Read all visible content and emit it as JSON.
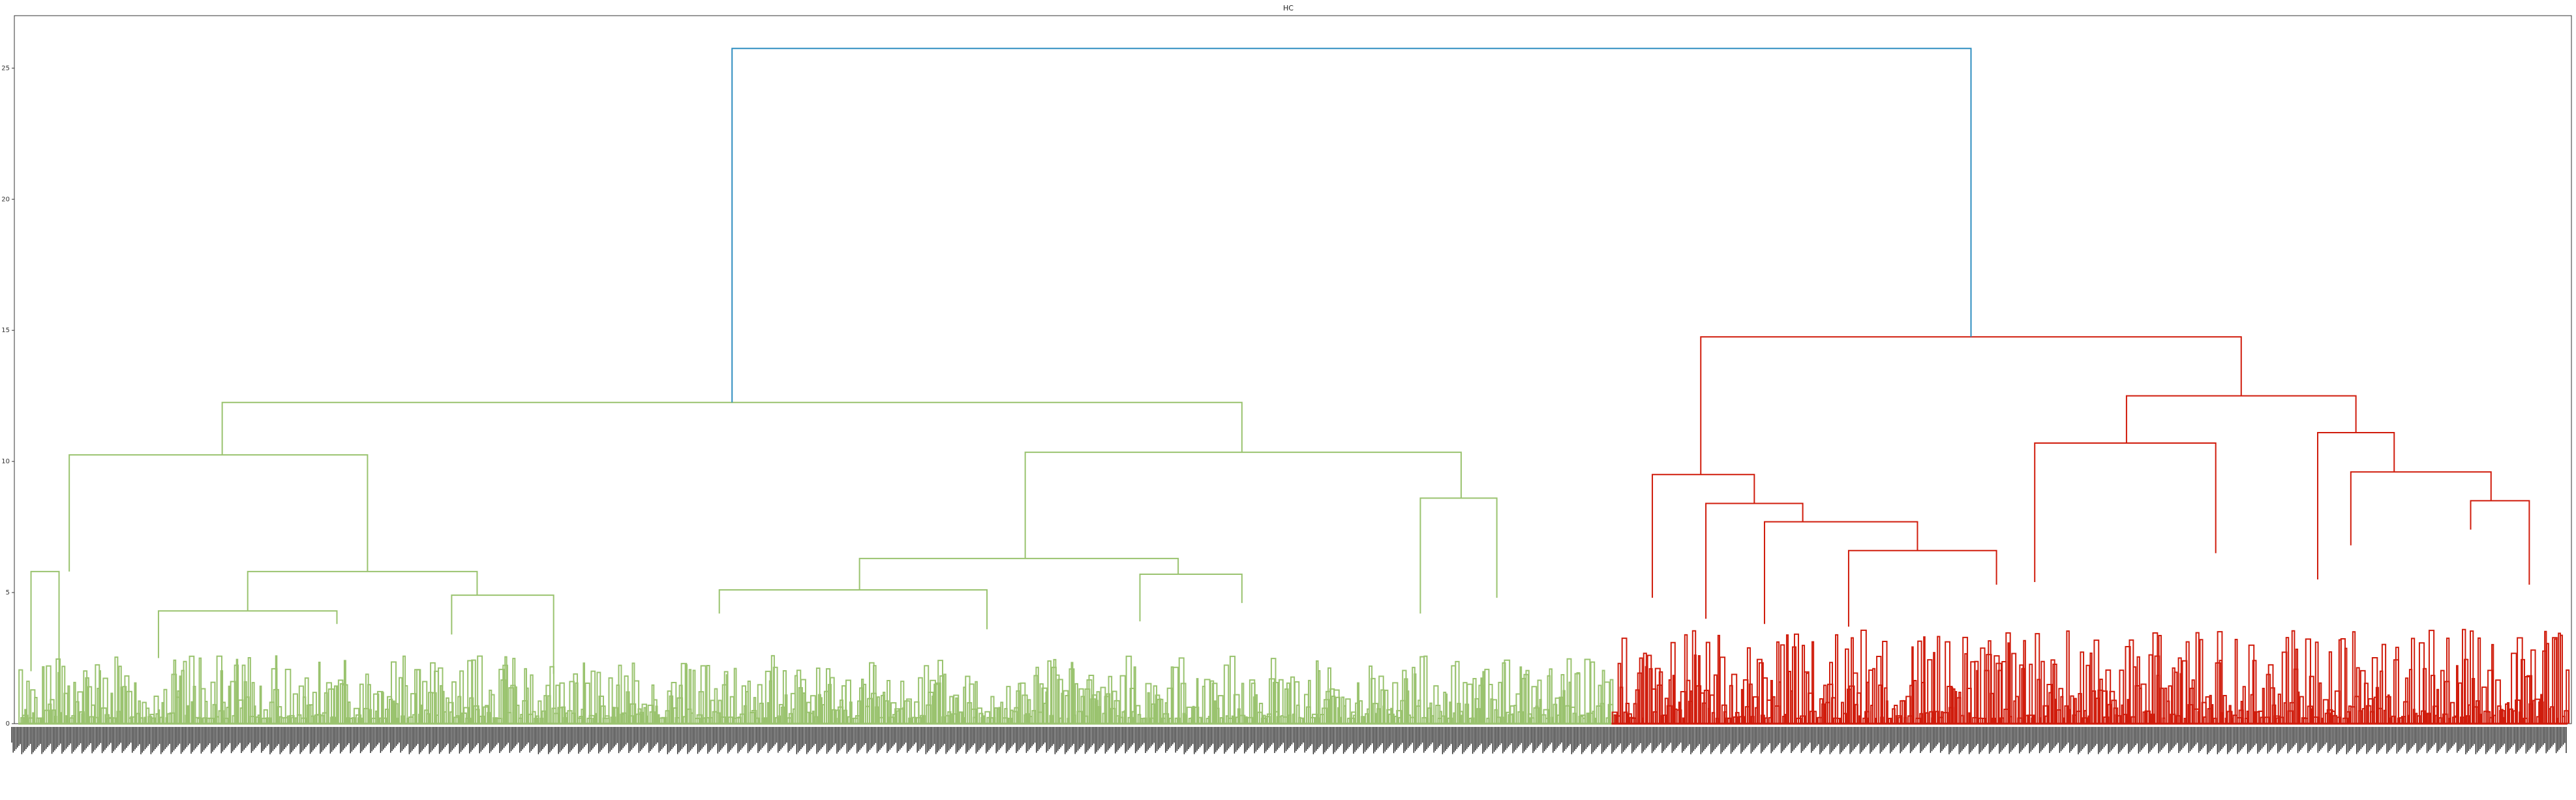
{
  "chart_data": {
    "type": "dendrogram",
    "title": "HC",
    "xlabel": "",
    "ylabel": "",
    "ylim": [
      0,
      27
    ],
    "yticks": [
      0,
      5,
      10,
      15,
      20,
      25
    ],
    "grid": false,
    "legend": "none",
    "colors": {
      "cluster_green": "#9ac36f",
      "cluster_red": "#d01c0c",
      "link_above_threshold": "#2f8ec0",
      "axis": "#333333",
      "leaf_labels": "#222222"
    },
    "top_merge": {
      "height": 25.75,
      "color": "link_above_threshold",
      "children": [
        "green_cluster",
        "red_cluster"
      ]
    },
    "clusters": [
      {
        "name": "green_cluster",
        "color": "cluster_green",
        "leaf_range": [
          0,
          0.625
        ],
        "merges": [
          {
            "height": 12.25,
            "children_at": [
              0.08,
              0.48
            ],
            "child_heights": [
              10.25,
              10.35
            ]
          },
          {
            "height": 10.25,
            "children_at": [
              0.02,
              0.137
            ],
            "child_heights": [
              5.8,
              5.8
            ]
          },
          {
            "height": 5.8,
            "children_at": [
              0.005,
              0.016
            ],
            "child_heights": [
              2.0,
              0.8
            ]
          },
          {
            "height": 5.8,
            "children_at": [
              0.09,
              0.18
            ],
            "child_heights": [
              4.3,
              4.9
            ]
          },
          {
            "height": 4.3,
            "children_at": [
              0.055,
              0.125
            ],
            "child_heights": [
              2.5,
              3.8
            ]
          },
          {
            "height": 4.9,
            "children_at": [
              0.17,
              0.21
            ],
            "child_heights": [
              3.4,
              1.9
            ]
          },
          {
            "height": 10.35,
            "children_at": [
              0.395,
              0.566
            ],
            "child_heights": [
              6.3,
              8.6
            ]
          },
          {
            "height": 6.3,
            "children_at": [
              0.33,
              0.455
            ],
            "child_heights": [
              5.1,
              5.7
            ]
          },
          {
            "height": 5.1,
            "children_at": [
              0.275,
              0.38
            ],
            "child_heights": [
              4.2,
              3.6
            ]
          },
          {
            "height": 5.7,
            "children_at": [
              0.44,
              0.48
            ],
            "child_heights": [
              3.9,
              4.6
            ]
          },
          {
            "height": 8.6,
            "children_at": [
              0.55,
              0.58
            ],
            "child_heights": [
              4.2,
              4.8
            ]
          }
        ]
      },
      {
        "name": "red_cluster",
        "color": "cluster_red",
        "leaf_range": [
          0.625,
          1.0
        ],
        "merges": [
          {
            "height": 14.75,
            "children_at": [
              0.66,
              0.872
            ],
            "child_heights": [
              9.5,
              12.5
            ]
          },
          {
            "height": 9.5,
            "children_at": [
              0.641,
              0.681
            ],
            "child_heights": [
              4.8,
              8.4
            ]
          },
          {
            "height": 8.4,
            "children_at": [
              0.662,
              0.7
            ],
            "child_heights": [
              4.0,
              7.7
            ]
          },
          {
            "height": 7.7,
            "children_at": [
              0.685,
              0.745
            ],
            "child_heights": [
              3.8,
              6.6
            ]
          },
          {
            "height": 6.6,
            "children_at": [
              0.718,
              0.776
            ],
            "child_heights": [
              3.7,
              5.3
            ]
          },
          {
            "height": 12.5,
            "children_at": [
              0.827,
              0.917
            ],
            "child_heights": [
              10.7,
              11.1
            ]
          },
          {
            "height": 10.7,
            "children_at": [
              0.791,
              0.862
            ],
            "child_heights": [
              5.4,
              6.5
            ]
          },
          {
            "height": 11.1,
            "children_at": [
              0.902,
              0.932
            ],
            "child_heights": [
              5.5,
              9.6
            ]
          },
          {
            "height": 9.6,
            "children_at": [
              0.915,
              0.97
            ],
            "child_heights": [
              6.8,
              8.5
            ]
          },
          {
            "height": 8.5,
            "children_at": [
              0.962,
              0.985
            ],
            "child_heights": [
              7.4,
              5.3
            ]
          }
        ]
      }
    ]
  }
}
